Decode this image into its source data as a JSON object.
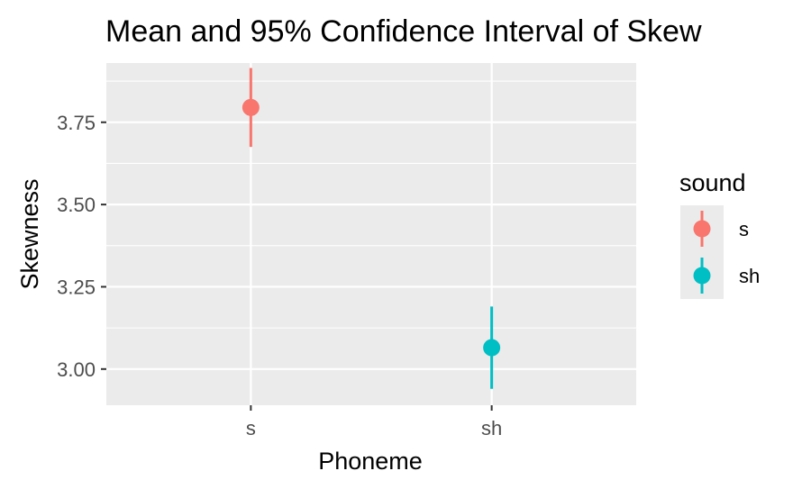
{
  "chart_data": {
    "type": "pointrange",
    "title": "Mean and 95% Confidence Interval of Skew",
    "xlabel": "Phoneme",
    "ylabel": "Skewness",
    "categories": [
      "s",
      "sh"
    ],
    "ylim": [
      2.89,
      3.93
    ],
    "yticks": [
      3.0,
      3.25,
      3.5,
      3.75
    ],
    "ytick_labels": [
      "3.00",
      "3.25",
      "3.50",
      "3.75"
    ],
    "grid": true,
    "series": [
      {
        "name": "s",
        "category": "s",
        "mean": 3.795,
        "lower": 3.675,
        "upper": 3.915,
        "color": "#F8766D"
      },
      {
        "name": "sh",
        "category": "sh",
        "mean": 3.065,
        "lower": 2.94,
        "upper": 3.19,
        "color": "#00BFC4"
      }
    ],
    "legend": {
      "title": "sound",
      "position": "right",
      "entries": [
        "s",
        "sh"
      ]
    },
    "colors": {
      "panel_bg": "#EBEBEB",
      "grid": "#FFFFFF",
      "text": "#000000",
      "tick_text": "#4D4D4D"
    }
  }
}
